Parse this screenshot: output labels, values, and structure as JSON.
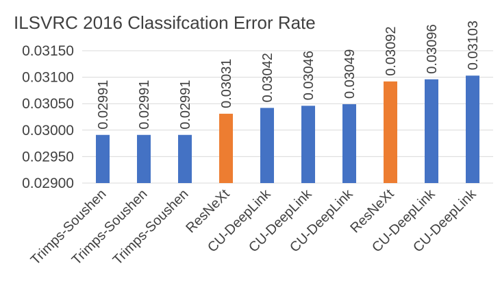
{
  "chart_data": {
    "type": "bar",
    "title": "ILSVRC 2016 Classifcation Error Rate",
    "xlabel": "",
    "ylabel": "",
    "categories": [
      "Trimps-Soushen",
      "Trimps-Soushen",
      "Trimps-Soushen",
      "ResNeXt",
      "CU-DeepLink",
      "CU-DeepLink",
      "CU-DeepLink",
      "ResNeXt",
      "CU-DeepLink",
      "CU-DeepLink"
    ],
    "values": [
      0.02991,
      0.02991,
      0.02991,
      0.03031,
      0.03042,
      0.03046,
      0.03049,
      0.03092,
      0.03096,
      0.03103
    ],
    "data_labels": [
      "0.02991",
      "0.02991",
      "0.02991",
      "0.03031",
      "0.03042",
      "0.03046",
      "0.03049",
      "0.03092",
      "0.03096",
      "0.03103"
    ],
    "ylim": [
      0.029,
      0.0315
    ],
    "yticks": [
      "0.02900",
      "0.02950",
      "0.03000",
      "0.03050",
      "0.03100",
      "0.03150"
    ],
    "grid": true,
    "legend": "none",
    "bar_colors": [
      "#4472C4",
      "#4472C4",
      "#4472C4",
      "#ED7D31",
      "#4472C4",
      "#4472C4",
      "#4472C4",
      "#ED7D31",
      "#4472C4",
      "#4472C4"
    ]
  }
}
